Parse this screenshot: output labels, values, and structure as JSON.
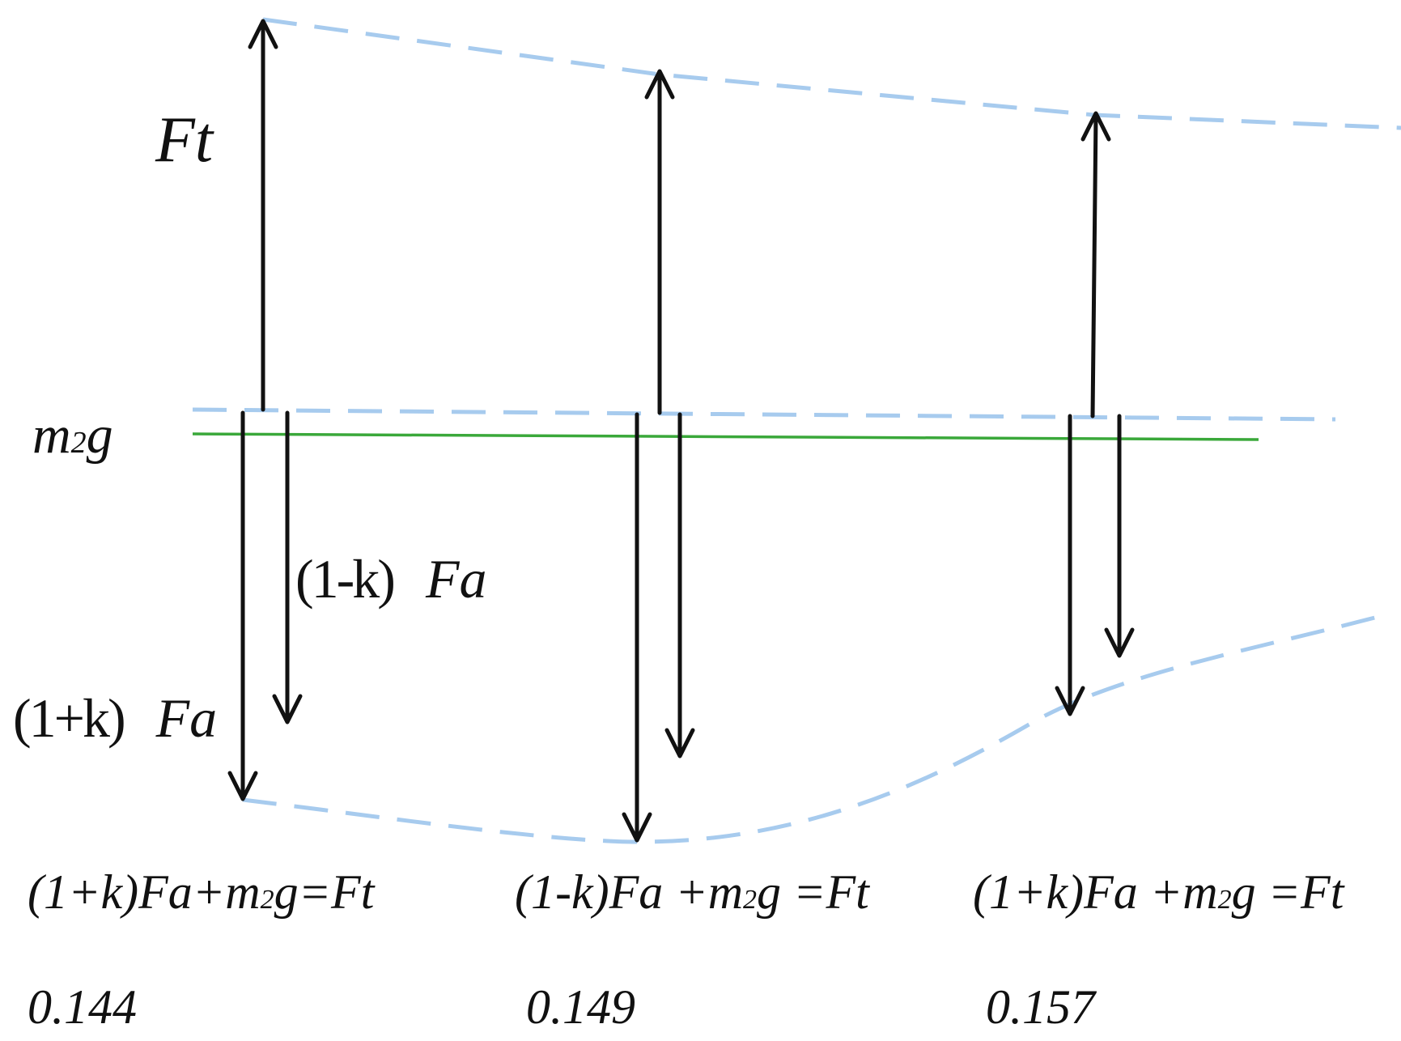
{
  "labels": {
    "ft": "Ft",
    "m2g_main": "m",
    "m2g_sub": "2",
    "m2g_end": "g",
    "one_minus_k_fa": "(1-k)",
    "one_minus_k_fa_var": "Fa",
    "one_plus_k_fa": "(1+k)",
    "one_plus_k_fa_var": "Fa"
  },
  "equations": [
    {
      "pre": "(1+k)Fa+m",
      "sub": "2",
      "post": "g=Ft"
    },
    {
      "pre": "(1-k)Fa +m",
      "sub": "2",
      "post": "g =Ft"
    },
    {
      "pre": "(1+k)Fa +m",
      "sub": "2",
      "post": "g =Ft"
    }
  ],
  "values": [
    "0.144",
    "0.149",
    "0.157"
  ],
  "colors": {
    "dashed_envelope": "#a7cbee",
    "m2g_line": "#3aa83a",
    "arrow": "#111111",
    "text": "#111111"
  }
}
